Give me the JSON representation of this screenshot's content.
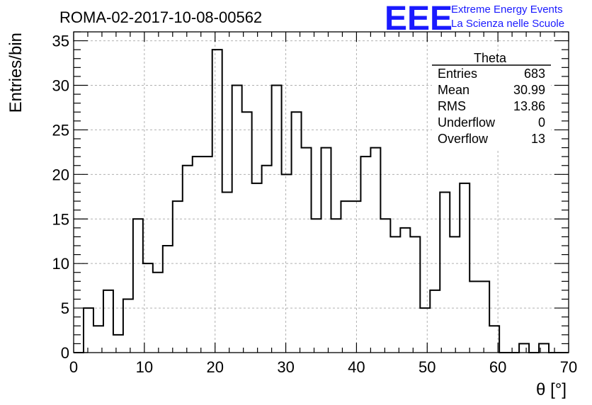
{
  "chart_data": {
    "type": "bar",
    "title": "ROMA-02-2017-10-08-00562",
    "xlabel": "θ [°]",
    "ylabel": "Entries/bin",
    "xlim": [
      0,
      70
    ],
    "ylim": [
      0,
      36
    ],
    "x_ticks": [
      0,
      10,
      20,
      30,
      40,
      50,
      60,
      70
    ],
    "y_ticks": [
      0,
      5,
      10,
      15,
      20,
      25,
      30,
      35
    ],
    "grid": true,
    "bin_width": 1.4,
    "bin_edges_start": 0,
    "values": [
      0,
      5,
      3,
      7,
      2,
      6,
      15,
      10,
      9,
      12,
      17,
      21,
      22,
      22,
      34,
      18,
      30,
      27,
      19,
      21,
      30,
      20,
      27,
      23,
      15,
      23,
      15,
      17,
      17,
      22,
      23,
      15,
      13,
      14,
      13,
      5,
      7,
      18,
      13,
      19,
      8,
      8,
      3,
      0,
      0,
      1,
      0,
      1,
      0,
      0
    ]
  },
  "stats_box": {
    "title": "Theta",
    "rows": [
      {
        "label": "Entries",
        "value": "683"
      },
      {
        "label": "Mean",
        "value": "30.99"
      },
      {
        "label": "RMS",
        "value": "13.86"
      },
      {
        "label": "Underflow",
        "value": "0"
      },
      {
        "label": "Overflow",
        "value": "13"
      }
    ]
  },
  "logo": {
    "mark": "EEE",
    "line1": "Extreme Energy Events",
    "line2": "La Scienza nelle Scuole"
  },
  "colors": {
    "logo": "#1a1aff",
    "grid": "#b0b0b0",
    "line": "#000000"
  }
}
